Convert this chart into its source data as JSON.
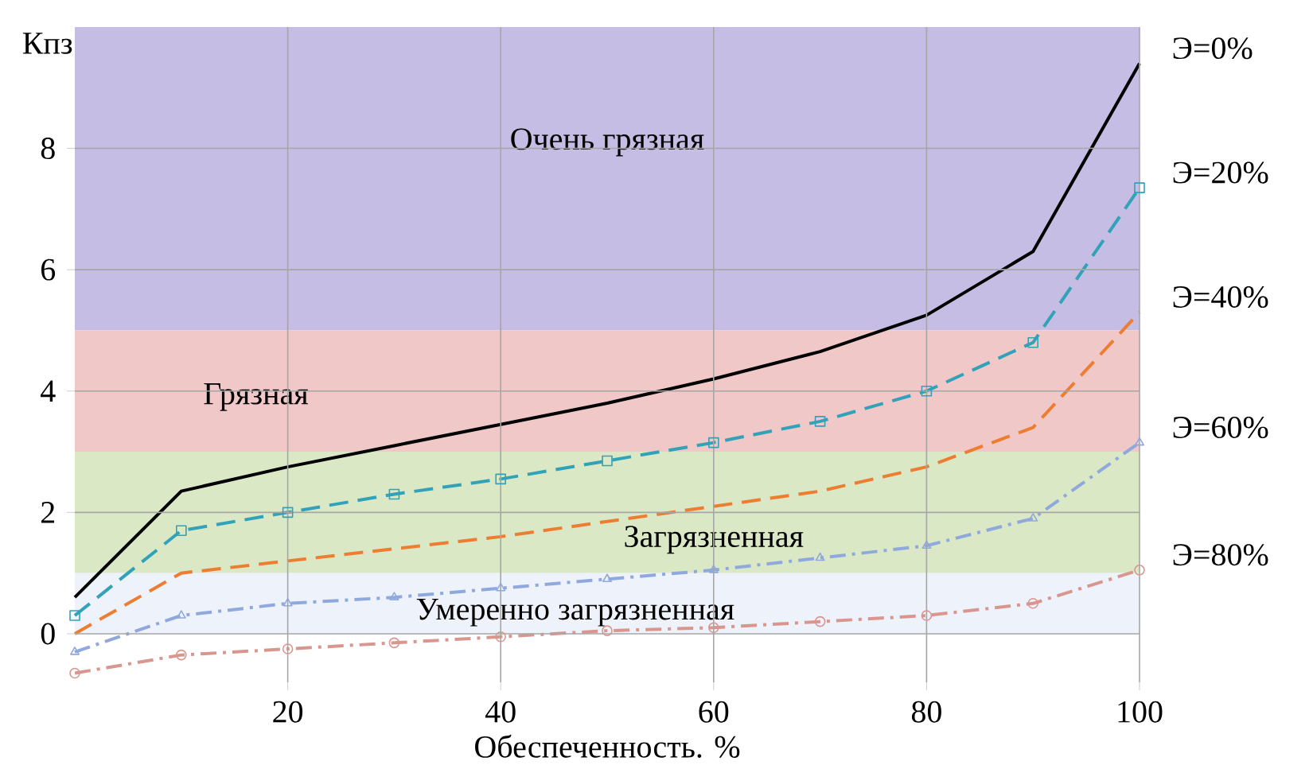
{
  "chart_data": {
    "type": "line",
    "xlabel": "Обеспеченность. %",
    "ylabel": "Кпз",
    "x": [
      0,
      10,
      20,
      30,
      40,
      50,
      60,
      70,
      80,
      90,
      100
    ],
    "series": [
      {
        "name": "Э=0%",
        "color": "#000000",
        "marker": "none",
        "line_style": "solid",
        "values": [
          0.6,
          2.35,
          2.75,
          3.1,
          3.45,
          3.8,
          4.2,
          4.65,
          5.25,
          6.3,
          9.4
        ]
      },
      {
        "name": "Э=20%",
        "color": "#31a2b8",
        "marker": "square",
        "line_style": "dashed",
        "values": [
          0.3,
          1.7,
          2.0,
          2.3,
          2.55,
          2.85,
          3.15,
          3.5,
          4.0,
          4.8,
          7.35
        ]
      },
      {
        "name": "Э=40%",
        "color": "#ed7d31",
        "marker": "none",
        "line_style": "dashed",
        "values": [
          0.0,
          1.0,
          1.2,
          1.4,
          1.6,
          1.85,
          2.1,
          2.35,
          2.75,
          3.4,
          5.3
        ]
      },
      {
        "name": "Э=60%",
        "color": "#8fa9dc",
        "marker": "triangle",
        "line_style": "dotted",
        "values": [
          -0.3,
          0.3,
          0.5,
          0.6,
          0.75,
          0.9,
          1.05,
          1.25,
          1.45,
          1.9,
          3.15
        ]
      },
      {
        "name": "Э=80%",
        "color": "#d9968f",
        "marker": "circle",
        "line_style": "dotted",
        "values": [
          -0.65,
          -0.35,
          -0.25,
          -0.15,
          -0.05,
          0.05,
          0.1,
          0.2,
          0.3,
          0.5,
          1.05
        ]
      }
    ],
    "bands": [
      {
        "axis": "y",
        "from": 5,
        "to": 10,
        "label": "Очень грязная",
        "color": "#c5bde3"
      },
      {
        "axis": "y",
        "from": 3,
        "to": 5,
        "label": "Грязная",
        "color": "#f0c8c8"
      },
      {
        "axis": "y",
        "from": 1,
        "to": 3,
        "label": "Загрязненная",
        "color": "#dbe8c6"
      },
      {
        "axis": "y",
        "from": 0,
        "to": 1,
        "label": "Умеренно загрязненная",
        "color": "#eef2fb"
      }
    ],
    "xlim": [
      0,
      100
    ],
    "ylim": [
      -0.8,
      10
    ],
    "xticks": [
      20,
      40,
      60,
      80,
      100
    ],
    "yticks": [
      0,
      2,
      4,
      6,
      8
    ],
    "grid": true
  }
}
